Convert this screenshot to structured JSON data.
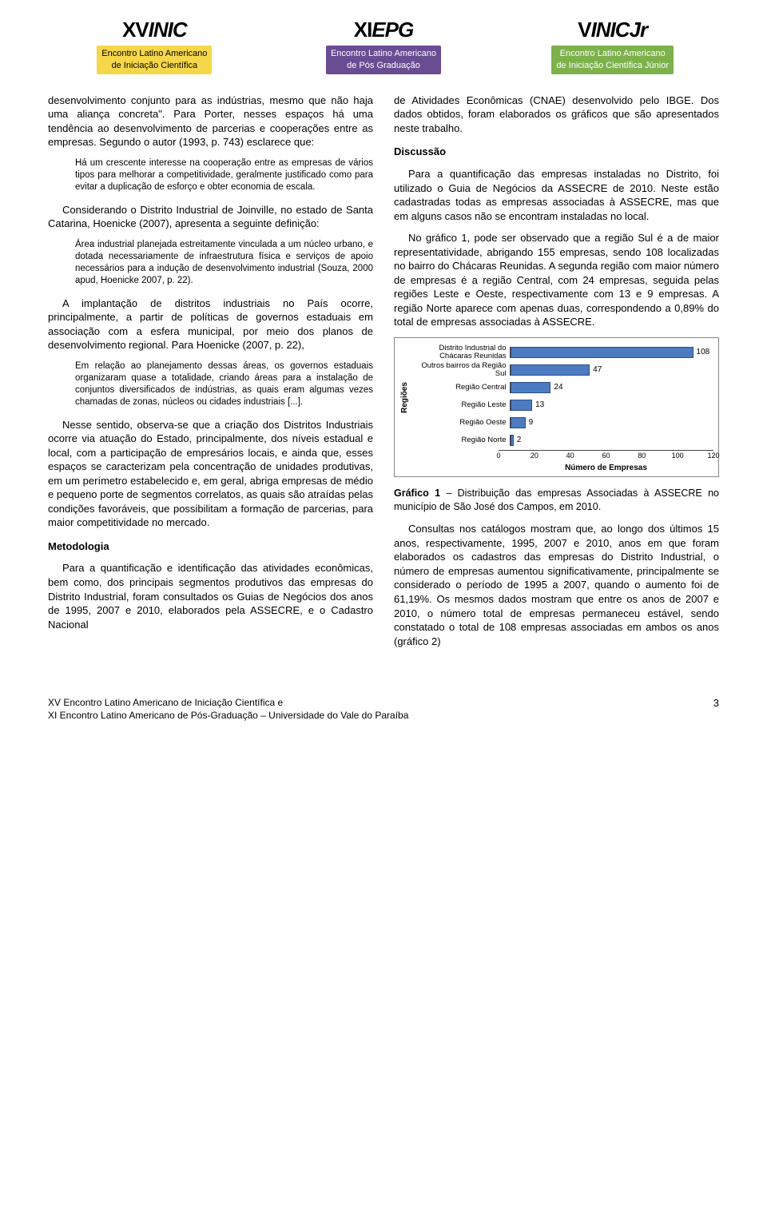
{
  "header": {
    "logos": [
      {
        "title_prefix": "XV",
        "title_main": "INIC",
        "sub1": "Encontro Latino Americano",
        "sub2": "de Iniciação Científica",
        "subclass": "yellow"
      },
      {
        "title_prefix": "XI",
        "title_main": "EPG",
        "sub1": "Encontro Latino Americano",
        "sub2": "de Pós Graduação",
        "subclass": "purple"
      },
      {
        "title_prefix": "V",
        "title_main": "INICJr",
        "sub1": "Encontro Latino Americano",
        "sub2": "de Iniciação Científica Júnior",
        "subclass": "green"
      }
    ]
  },
  "left": {
    "p1": "desenvolvimento conjunto para as indústrias, mesmo que não haja uma aliança concreta\". Para Porter, nesses espaços há uma tendência ao desenvolvimento de parcerias e cooperações entre as empresas. Segundo o autor (1993, p. 743) esclarece que:",
    "q1": "Há um crescente interesse na cooperação entre as empresas de vários tipos para melhorar a competitividade, geralmente justificado como para evitar a duplicação de esforço e obter economia de escala.",
    "p2": "Considerando o Distrito Industrial de Joinville, no estado de Santa Catarina, Hoenicke (2007), apresenta a seguinte definição:",
    "q2": "Área industrial planejada estreitamente vinculada a um núcleo urbano, e dotada necessariamente de infraestrutura física e serviços de apoio necessários para a indução de desenvolvimento industrial (Souza, 2000 apud, Hoenicke 2007, p. 22).",
    "p3": "A implantação de distritos industriais no País ocorre, principalmente, a partir de políticas de governos estaduais em associação com a esfera municipal, por meio dos planos de desenvolvimento regional. Para Hoenicke (2007, p. 22),",
    "q3": "Em relação ao planejamento dessas áreas, os governos estaduais organizaram quase a totalidade, criando áreas para a instalação de conjuntos diversificados de indústrias, as quais eram algumas vezes chamadas de zonas, núcleos ou cidades industriais [...].",
    "p4": "Nesse sentido, observa-se que a criação dos Distritos Industriais ocorre via atuação do Estado, principalmente, dos níveis estadual e local, com a participação de empresários locais, e ainda que, esses espaços se caracterizam pela concentração de unidades produtivas, em um perímetro estabelecido e, em geral, abriga empresas de médio e pequeno porte de segmentos correlatos, as quais são atraídas pelas condições favoráveis, que possibilitam a formação de parcerias, para maior competitividade no mercado.",
    "h_met": "Metodologia",
    "p5": "Para a quantificação e identificação das atividades econômicas, bem como, dos principais segmentos produtivos das empresas do Distrito Industrial, foram consultados os Guias de Negócios dos anos de 1995, 2007 e 2010, elaborados pela ASSECRE, e o Cadastro Nacional"
  },
  "right": {
    "p1": "de Atividades Econômicas (CNAE) desenvolvido pelo IBGE. Dos dados obtidos, foram elaborados os gráficos que são apresentados neste trabalho.",
    "h_disc": "Discussão",
    "p2": "Para a quantificação das empresas instaladas no Distrito, foi utilizado o Guia de Negócios da ASSECRE de 2010. Neste estão cadastradas todas as empresas associadas à ASSECRE, mas que em alguns casos não se encontram instaladas no local.",
    "p3": "No gráfico 1, pode ser observado que a região Sul é a de maior representatividade, abrigando 155 empresas, sendo 108 localizadas no bairro do Chácaras Reunidas. A segunda região com maior número de empresas é a região Central, com 24 empresas, seguida pelas regiões Leste e Oeste, respectivamente com 13 e 9 empresas. A região Norte aparece com apenas duas, correspondendo a 0,89% do total de empresas associadas à ASSECRE.",
    "chart": {
      "type": "bar-horizontal",
      "ylabel": "Regiões",
      "xlabel": "Número de Empresas",
      "xmax": 120,
      "xticks": [
        0,
        20,
        40,
        60,
        80,
        100,
        120
      ],
      "bar_color": "#4d7bc2",
      "bar_border": "#2a4d85",
      "grid_color": "#cccccc",
      "bars": [
        {
          "label": "Distrito Industrial do Chácaras Reunidas",
          "value": 108
        },
        {
          "label": "Outros bairros da Região Sul",
          "value": 47
        },
        {
          "label": "Região Central",
          "value": 24
        },
        {
          "label": "Região Leste",
          "value": 13
        },
        {
          "label": "Região Oeste",
          "value": 9
        },
        {
          "label": "Região Norte",
          "value": 2
        }
      ]
    },
    "caption_bold": "Gráfico 1",
    "caption_rest": " – Distribuição das empresas Associadas à ASSECRE no município de São José dos Campos, em 2010.",
    "p4": "Consultas nos catálogos mostram que, ao longo dos últimos 15 anos, respectivamente, 1995, 2007 e 2010, anos em que foram elaborados os cadastros das empresas do Distrito Industrial, o número de empresas aumentou significativamente, principalmente se considerado o período de 1995 a 2007, quando o aumento foi de 61,19%. Os mesmos dados mostram que entre os anos de 2007 e 2010, o número total de empresas permaneceu estável, sendo constatado o total de 108 empresas associadas em ambos os anos (gráfico 2)"
  },
  "footer": {
    "line1": "XV Encontro Latino Americano de Iniciação Científica e",
    "line2": "XI Encontro Latino Americano de Pós-Graduação – Universidade do Vale do Paraíba",
    "page": "3"
  }
}
